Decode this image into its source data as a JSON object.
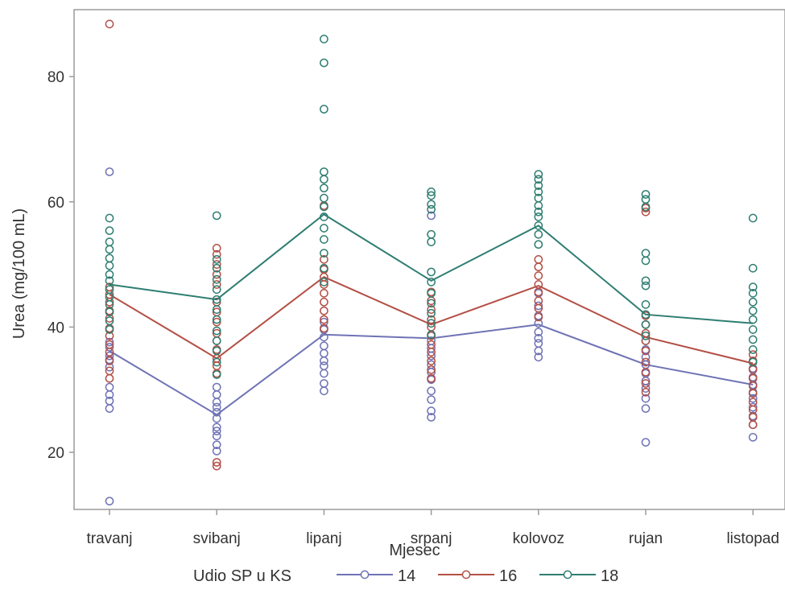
{
  "chart_data": {
    "type": "scatter",
    "xlabel": "Mjesec",
    "ylabel": "Urea (mg/100 mL)",
    "categories": [
      "travanj",
      "svibanj",
      "lipanj",
      "srpanj",
      "kolovoz",
      "rujan",
      "listopad"
    ],
    "yticks": [
      20,
      40,
      60,
      80
    ],
    "ylim": [
      10,
      90
    ],
    "grid": false,
    "legend": {
      "title": "Udio SP u KS",
      "position": "bottom"
    },
    "series": [
      {
        "name": "14",
        "color": "#6F73B5",
        "means": [
          36.2,
          26,
          38.8,
          38.2,
          40.4,
          34,
          30.8
        ],
        "points": [
          [
            12.2,
            27,
            28.2,
            29.2,
            30.4,
            33.6,
            34.8,
            35.4,
            36.8,
            37.6,
            64.8
          ],
          [
            20.2,
            21.2,
            22.6,
            23.4,
            24,
            25.4,
            26.4,
            27.2,
            28,
            29.2,
            30.4
          ],
          [
            29.8,
            31,
            32.6,
            33.8,
            34.6,
            35.8,
            37,
            38.4,
            39.6,
            40.8
          ],
          [
            25.6,
            26.6,
            28.4,
            29.8,
            31.6,
            32.8,
            34,
            35.4,
            36.6,
            37.8,
            57.8
          ],
          [
            35.2,
            36.2,
            37.4,
            38.2,
            39.2,
            40.6,
            41.8,
            43.4,
            45.4
          ],
          [
            21.6,
            27,
            28.6,
            30.2,
            31.4,
            32.6,
            34,
            35.2,
            36.4,
            37.8
          ],
          [
            22.4,
            24.4,
            25.8,
            27.2,
            28.6,
            29.6,
            30.8,
            32,
            33.4
          ]
        ]
      },
      {
        "name": "16",
        "color": "#B34F45",
        "means": [
          45.2,
          35,
          48,
          40.4,
          46.6,
          38.4,
          34.2
        ],
        "points": [
          [
            31.8,
            33,
            34.6,
            36,
            37.2,
            38.6,
            39.8,
            41.4,
            42.6,
            44,
            45.2,
            46.4,
            88.4
          ],
          [
            17.8,
            18.4,
            32.6,
            33.8,
            35,
            36.4,
            37.8,
            39,
            40.8,
            42.4,
            44,
            46.8,
            48.4,
            50,
            51.6,
            52.6
          ],
          [
            39.8,
            41.2,
            42.6,
            44,
            45.4,
            46.8,
            48,
            49.2,
            50.8,
            59.4
          ],
          [
            31.8,
            33.2,
            34.6,
            36,
            37.2,
            38.6,
            40,
            41.2,
            42.8,
            44.2,
            45.6
          ],
          [
            41.6,
            43,
            44.2,
            45.6,
            46.8,
            48.2,
            49.6,
            50.8
          ],
          [
            29.6,
            31,
            32.8,
            34.4,
            36.2,
            37.8,
            39,
            40.4,
            41.8,
            58.4,
            59
          ],
          [
            24.4,
            25.6,
            26.8,
            28,
            29.4,
            30.6,
            31.8,
            33.2,
            34.6,
            35.6
          ]
        ]
      },
      {
        "name": "18",
        "color": "#2E7E72",
        "means": [
          46.8,
          44.4,
          58,
          47.4,
          56.2,
          42,
          40.6
        ],
        "points": [
          [
            39.6,
            41,
            42.4,
            43.6,
            44.8,
            46,
            47.4,
            48.4,
            49.8,
            51,
            52.4,
            53.6,
            55.4,
            57.4
          ],
          [
            32.4,
            34.4,
            36.2,
            37.8,
            39.4,
            41.2,
            42.8,
            44.4,
            46,
            47.6,
            49.4,
            50.8,
            57.8
          ],
          [
            47.2,
            49.4,
            51.8,
            54,
            55.8,
            57.6,
            59.2,
            60.6,
            62.2,
            63.6,
            64.8,
            74.8,
            82.2,
            86
          ],
          [
            38.8,
            40.6,
            42.2,
            43.8,
            45.4,
            47.2,
            48.8,
            53.6,
            54.8,
            58.8,
            59.6,
            61,
            61.6
          ],
          [
            53.2,
            54.8,
            56.2,
            57.6,
            58.4,
            59.4,
            60.6,
            61.6,
            62.6,
            63.6,
            64.4
          ],
          [
            38.6,
            40.4,
            42,
            43.6,
            46.6,
            47.4,
            50.6,
            51.8,
            59.2,
            60.4,
            61.2
          ],
          [
            34.4,
            36.4,
            38,
            39.6,
            41.2,
            42.6,
            44,
            45.4,
            46.4,
            49.4,
            57.4
          ]
        ]
      }
    ]
  }
}
